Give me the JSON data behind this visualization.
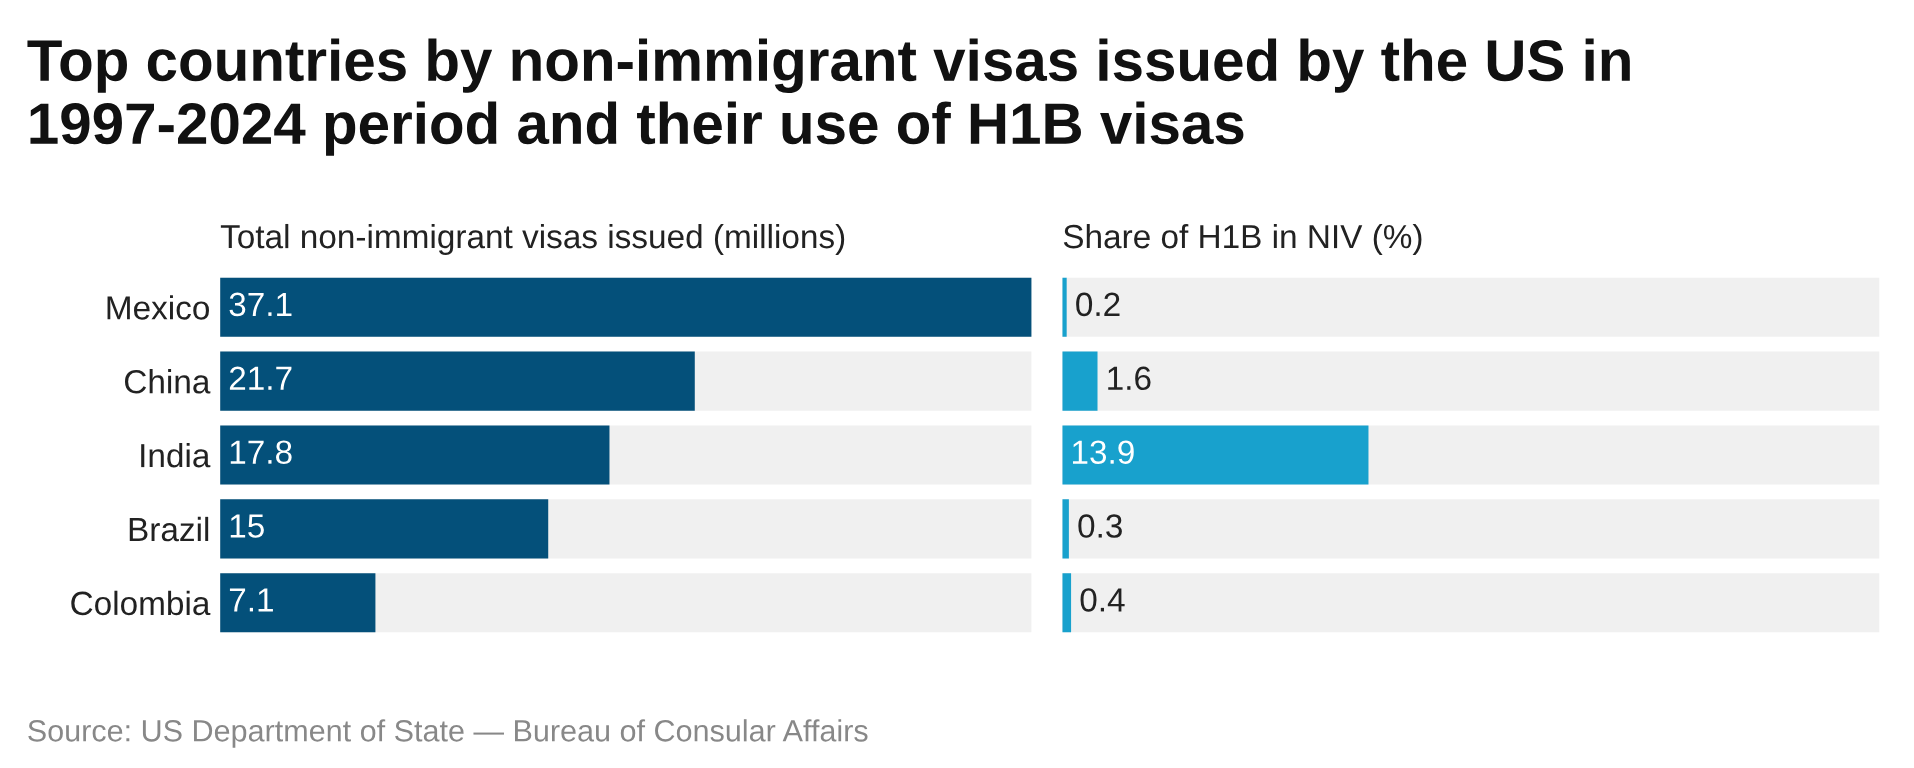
{
  "chart_data": [
    {
      "type": "bar",
      "orientation": "horizontal",
      "title": "Top countries by non-immigrant visas issued by the US in 1997-2024 period and their use of H1B visas",
      "subtitle": "Total non-immigrant visas issued (millions)",
      "categories": [
        "Mexico",
        "China",
        "India",
        "Brazil",
        "Colombia"
      ],
      "values": [
        37.1,
        21.7,
        17.8,
        15,
        7.1
      ],
      "color": "#04507a",
      "xlim": [
        0,
        37.1
      ],
      "data_labels": true,
      "tick_labels": "y",
      "annotations": [
        "Source: US Department of State — Bureau of Consular Affairs"
      ]
    },
    {
      "type": "bar",
      "orientation": "horizontal",
      "subtitle": "Share of H1B in NIV (%)",
      "categories": [
        null,
        null,
        null,
        null,
        null
      ],
      "values": [
        0.2,
        1.6,
        13.9,
        0.3,
        0.4
      ],
      "color": "#18a1cd",
      "xlim": [
        0,
        37.1
      ],
      "data_labels": true,
      "tick_labels": false
    }
  ]
}
